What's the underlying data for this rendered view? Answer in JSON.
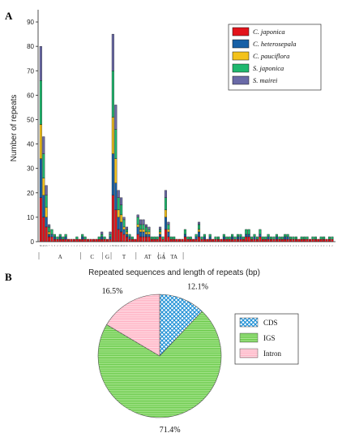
{
  "panels": {
    "a": "A",
    "b": "B"
  },
  "chart_data": [
    {
      "type": "bar",
      "stacked": true,
      "ylabel": "Number of repeats",
      "xlabel": "Repeated sequences and length of repeats (bp)",
      "ylim": [
        0,
        95
      ],
      "yticks": [
        0,
        10,
        20,
        30,
        40,
        50,
        60,
        70,
        80,
        90
      ],
      "legend_position": "top-right",
      "series": [
        {
          "name": "C. japonica",
          "color": "#e2131b"
        },
        {
          "name": "C. heterosepala",
          "color": "#1760a6"
        },
        {
          "name": "C. pauciflora",
          "color": "#f3c21b"
        },
        {
          "name": "S. japonica",
          "color": "#1fb86e"
        },
        {
          "name": "S. mairei",
          "color": "#6a6aa7"
        }
      ],
      "groups": [
        {
          "label": "A",
          "totals": [
            80,
            43,
            23,
            7,
            5,
            3,
            2,
            3,
            2,
            3,
            1,
            1,
            1,
            2,
            1
          ]
        },
        {
          "label": "C",
          "totals": [
            3,
            2,
            1,
            1,
            1,
            1,
            2,
            4
          ]
        },
        {
          "label": "G",
          "totals": [
            2,
            1,
            4
          ]
        },
        {
          "label": "T",
          "totals": [
            85,
            56,
            21,
            18,
            10,
            6,
            3,
            2,
            1
          ]
        },
        {
          "label": "AT",
          "totals": [
            11,
            9,
            9,
            7,
            6,
            2,
            2,
            2
          ]
        },
        {
          "label": "GA",
          "totals": [
            6,
            2
          ]
        },
        {
          "label": "TA",
          "totals": [
            21,
            8,
            2,
            2,
            1,
            1,
            1
          ]
        },
        {
          "label": "",
          "totals": [
            5,
            2,
            2,
            1,
            3,
            8,
            2,
            3,
            1,
            3,
            1,
            2,
            2,
            1,
            3,
            2,
            2,
            3,
            2,
            3,
            3,
            2,
            5,
            5,
            2,
            3,
            2,
            5,
            2,
            2,
            3,
            2,
            2,
            3,
            2,
            2,
            3,
            3,
            2,
            2,
            2,
            1,
            2,
            2,
            2,
            1,
            2,
            2,
            1,
            2,
            2,
            1,
            2,
            2
          ]
        }
      ]
    },
    {
      "type": "pie",
      "categories": [
        "CDS",
        "IGS",
        "Intron"
      ],
      "values": [
        12.1,
        71.4,
        16.5
      ],
      "labels": [
        "12.1%",
        "71.4%",
        "16.5%"
      ],
      "colors": [
        "#1e90d6",
        "#6fd14a",
        "#ffb3c4"
      ],
      "patterns": [
        "crosshatch",
        "horizontal-lines",
        "horizontal-lines"
      ],
      "legend_position": "right"
    }
  ]
}
